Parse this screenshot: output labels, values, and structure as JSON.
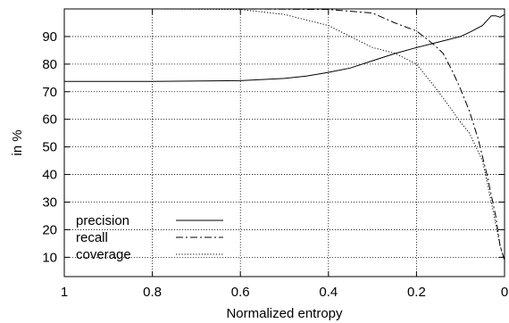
{
  "chart_data": {
    "type": "line",
    "title": "",
    "xlabel": "Normalized entropy",
    "ylabel": "in %",
    "x_reversed": true,
    "xlim": [
      1,
      0
    ],
    "ylim": [
      3,
      100
    ],
    "x_ticks": [
      1,
      0.8,
      0.6,
      0.4,
      0.2,
      0
    ],
    "x_tick_labels": [
      "1",
      "0.8",
      "0.6",
      "0.4",
      "0.2",
      "0"
    ],
    "y_ticks": [
      10,
      20,
      30,
      40,
      50,
      60,
      70,
      80,
      90
    ],
    "y_tick_labels": [
      "10",
      "20",
      "30",
      "40",
      "50",
      "60",
      "70",
      "80",
      "90"
    ],
    "grid": true,
    "legend_position": "bottom-left",
    "series": [
      {
        "name": "precision",
        "style": "solid",
        "x": [
          1.0,
          0.8,
          0.6,
          0.5,
          0.45,
          0.4,
          0.35,
          0.3,
          0.25,
          0.2,
          0.15,
          0.1,
          0.08,
          0.05,
          0.03,
          0.02,
          0.01,
          0.0
        ],
        "y": [
          73.7,
          73.7,
          74.0,
          74.8,
          75.7,
          77.0,
          78.6,
          81.2,
          83.8,
          86.0,
          88.0,
          90.0,
          91.5,
          94.0,
          97.5,
          97.5,
          97.0,
          98.0
        ]
      },
      {
        "name": "recall",
        "style": "dashdot",
        "x": [
          1.0,
          0.8,
          0.6,
          0.4,
          0.3,
          0.25,
          0.2,
          0.16,
          0.14,
          0.12,
          0.1,
          0.08,
          0.06,
          0.04,
          0.02,
          0.01,
          0.0
        ],
        "y": [
          100,
          100,
          100,
          99.8,
          98.5,
          95.0,
          92.0,
          87.0,
          84.0,
          78.0,
          71.0,
          63.0,
          53.0,
          40.0,
          25.0,
          14.0,
          9.0
        ]
      },
      {
        "name": "coverage",
        "style": "dotted",
        "x": [
          1.0,
          0.8,
          0.6,
          0.5,
          0.4,
          0.35,
          0.3,
          0.25,
          0.2,
          0.15,
          0.1,
          0.08,
          0.05,
          0.03,
          0.01,
          0.0
        ],
        "y": [
          100,
          100,
          99.8,
          98.0,
          94.0,
          90.0,
          86.0,
          84.0,
          80.0,
          70.0,
          59.0,
          55.0,
          45.0,
          30.0,
          14.0,
          9.0
        ]
      }
    ]
  }
}
